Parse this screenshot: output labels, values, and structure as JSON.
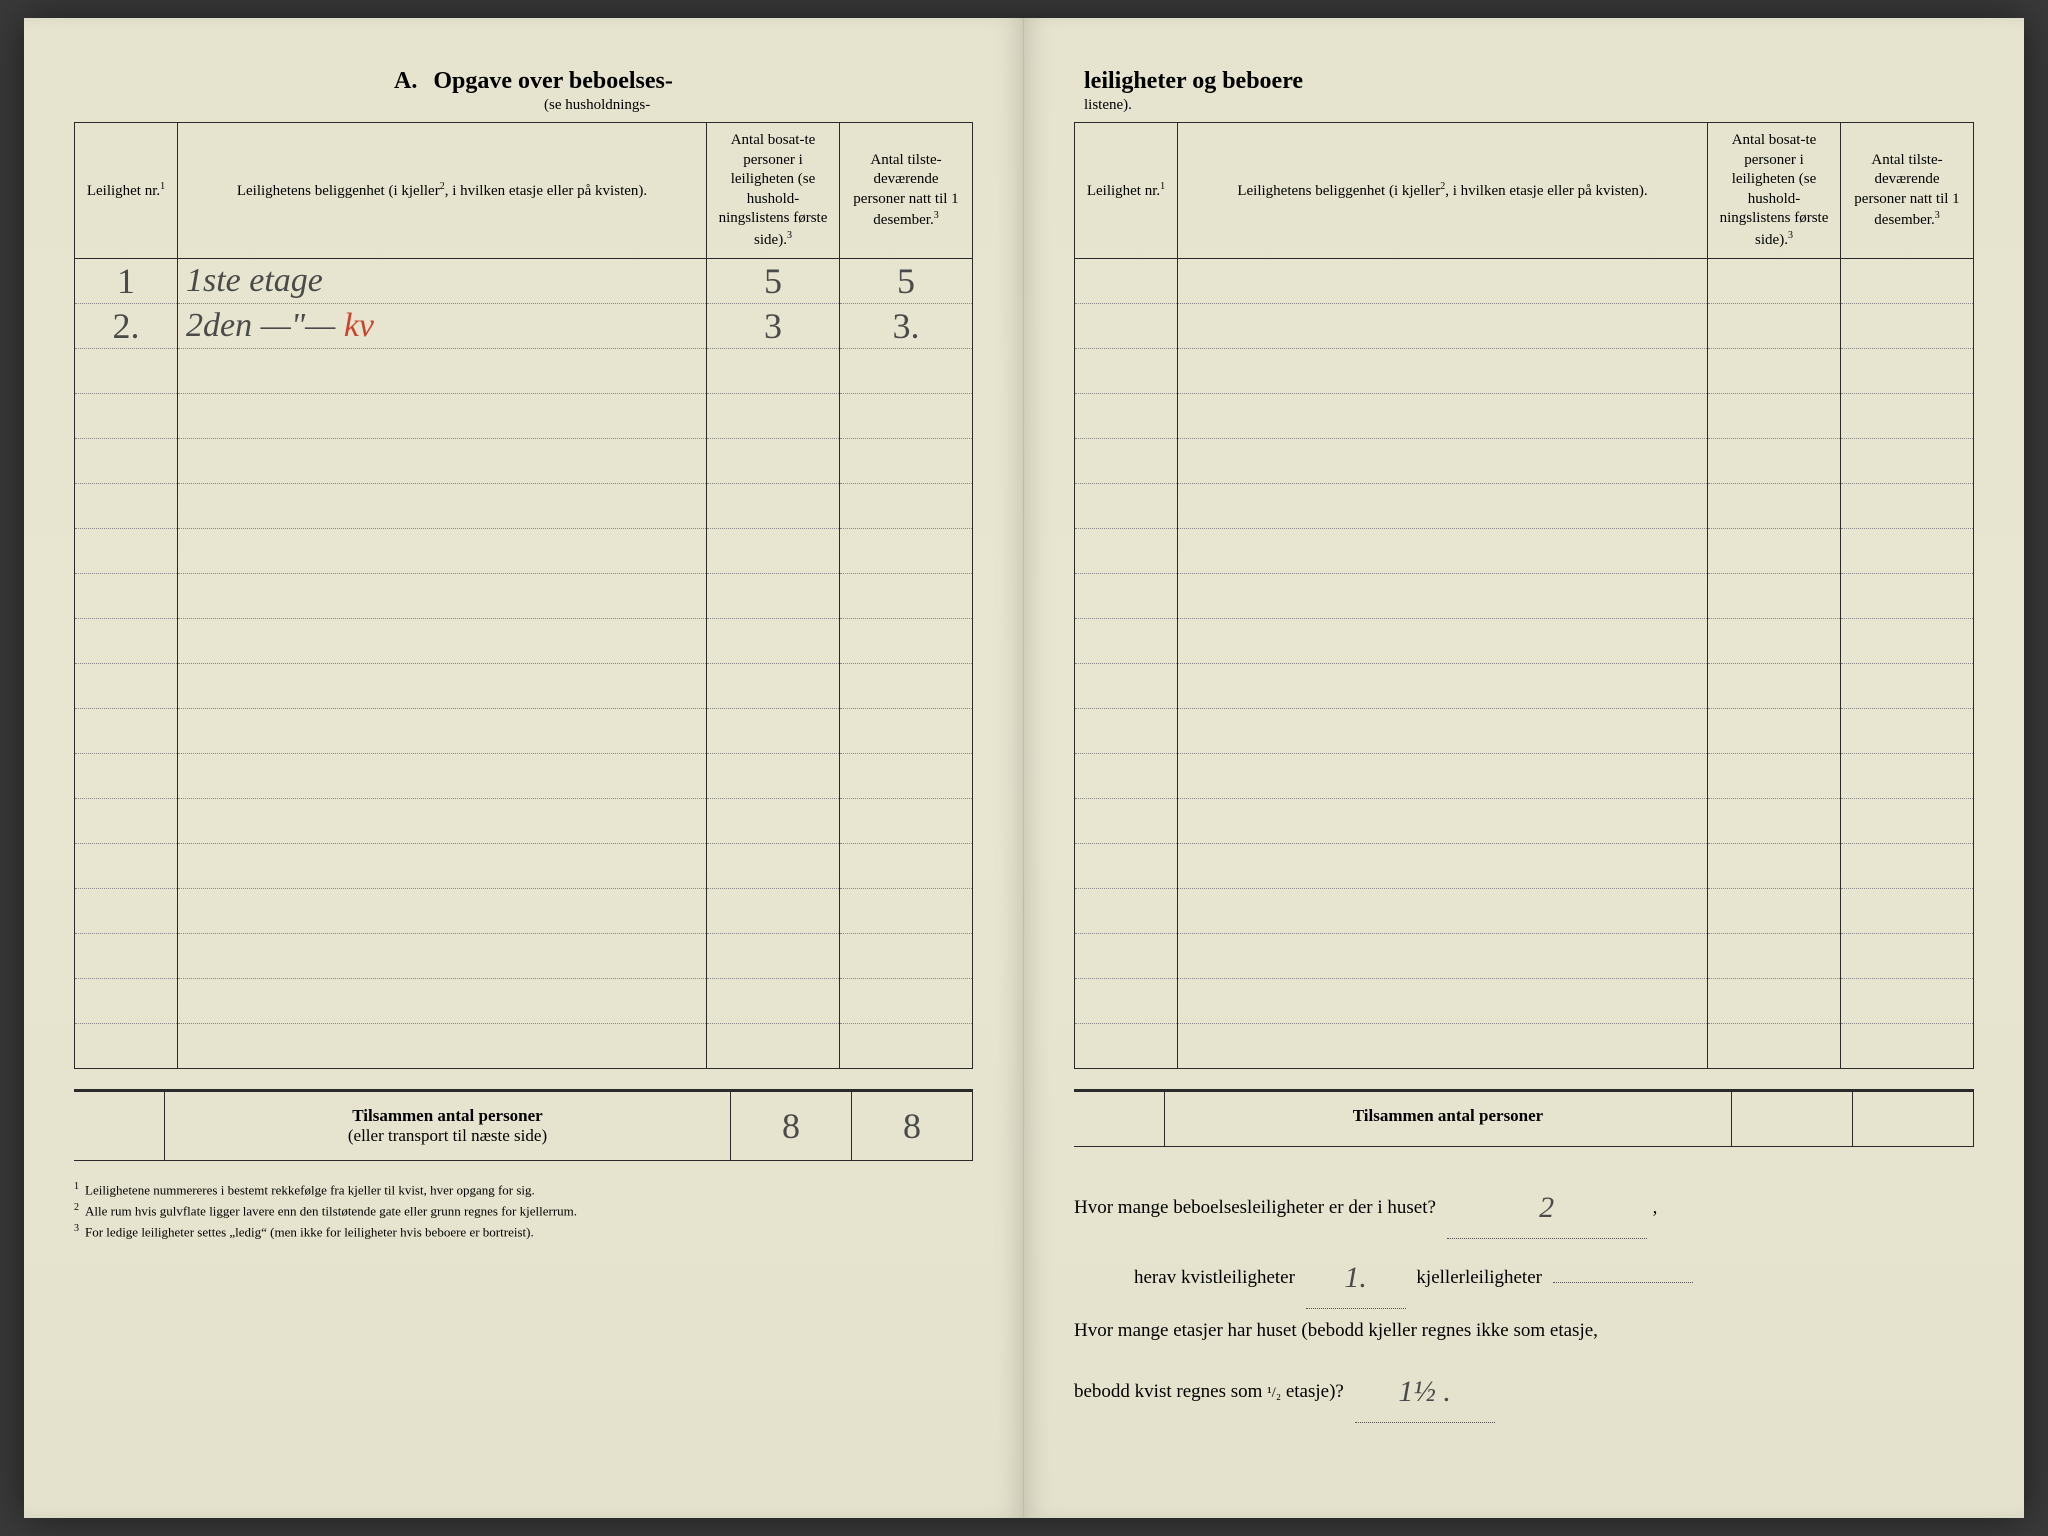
{
  "colors": {
    "paper": "#e8e6d0",
    "ink": "#2a2a2a",
    "handwriting": "#4a4a4a",
    "red_ink": "#c94530",
    "dotted": "#888888"
  },
  "title": {
    "letter": "A.",
    "left": "Opgave over beboelses-",
    "subtitle_left": "(se husholdnings-",
    "right": "leiligheter og beboere",
    "subtitle_right": "listene)."
  },
  "headers": {
    "col1": "Leilighet nr.",
    "col1_sup": "1",
    "col2": "Leilighetens beliggenhet (i kjeller",
    "col2_sup": "2",
    "col2_cont": ", i hvilken etasje eller på kvisten).",
    "col3": "Antal bosat-te personer i leiligheten (se hushold-ningslistens første side).",
    "col3_sup": "3",
    "col4": "Antal tilste-deværende personer natt til 1 desember.",
    "col4_sup": "3"
  },
  "rows_left": [
    {
      "nr": "1",
      "loc": "1ste etage",
      "n1": "5",
      "n2": "5"
    },
    {
      "nr": "2.",
      "loc": "2den —\"— ",
      "loc_red": "kv",
      "n1": "3",
      "n2": "3."
    }
  ],
  "blank_row_count": 16,
  "blank_row_count_right": 18,
  "totals": {
    "label_bold": "Tilsammen antal personer",
    "label_sub": "(eller transport til næste side)",
    "v1": "8",
    "v2": "8"
  },
  "totals_right": {
    "label": "Tilsammen antal personer"
  },
  "footnotes": [
    {
      "n": "1",
      "text": "Leilighetene nummereres i bestemt rekkefølge fra kjeller til kvist, hver opgang for sig."
    },
    {
      "n": "2",
      "text": "Alle rum hvis gulvflate ligger lavere enn den tilstøtende gate eller grunn regnes for kjellerrum."
    },
    {
      "n": "3",
      "text": "For ledige leiligheter settes „ledig“ (men ikke for leiligheter hvis beboere er bortreist)."
    }
  ],
  "questions": {
    "q1_a": "Hvor mange beboelsesleiligheter er der i huset?",
    "q1_ans": "2",
    "q2_a": "herav kvistleiligheter",
    "q2_ans": "1.",
    "q2_b": "kjellerleiligheter",
    "q3_a": "Hvor mange etasjer har huset (bebodd kjeller regnes ikke som etasje,",
    "q3_b": "bebodd kvist regnes som",
    "q3_half": "¹/₂",
    "q3_c": "etasje)?",
    "q3_ans": "1½ ."
  }
}
